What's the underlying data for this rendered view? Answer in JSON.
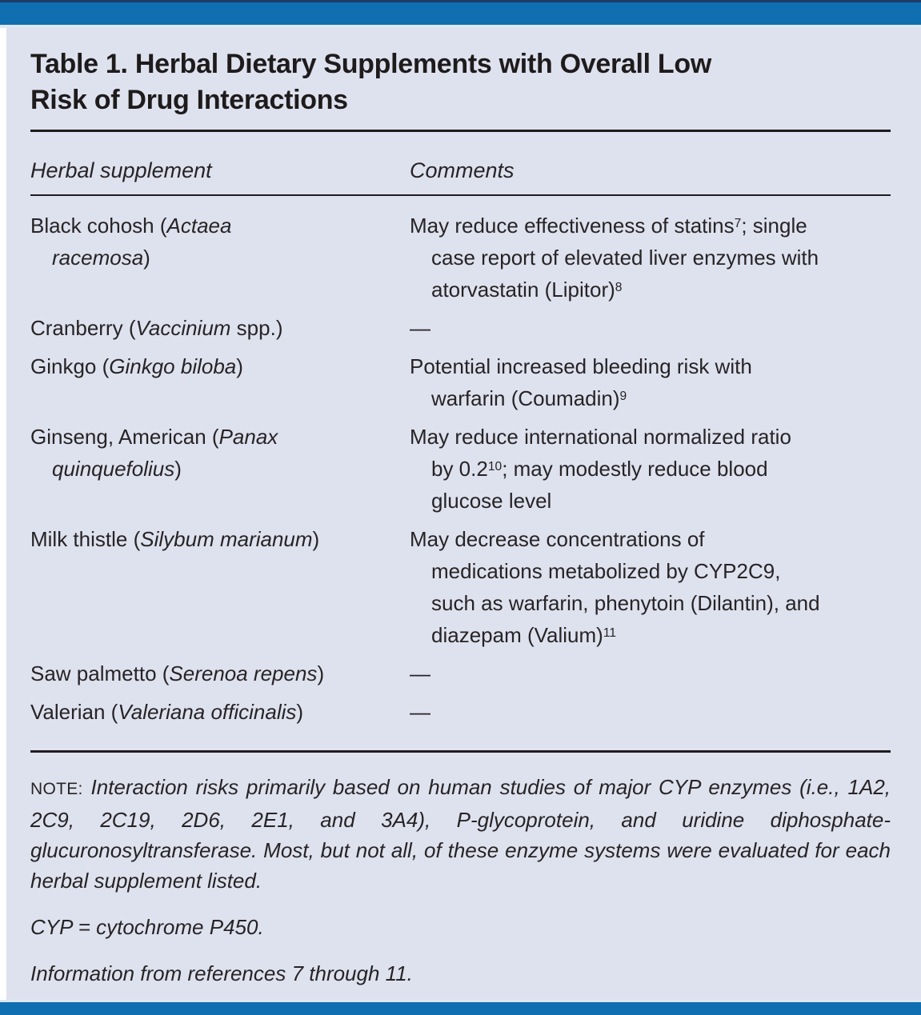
{
  "colors": {
    "bar_blue": "#0f6fb0",
    "bar_navy": "#1d3b66",
    "edge_light": "#dce8f5",
    "panel_bg": "#dee2ee",
    "ink": "#272326",
    "rule_ink": "#1e1c1e",
    "page_bg": "#ffffff"
  },
  "table": {
    "title_lines": [
      "Table 1. Herbal Dietary Supplements with Overall Low",
      "Risk of Drug Interactions"
    ],
    "columns": [
      "Herbal supplement",
      "Comments"
    ],
    "rows": [
      {
        "supplement": [
          {
            "text": "Black cohosh ("
          },
          {
            "text": "Actaea",
            "italic": true
          },
          {
            "br": true
          },
          {
            "text": "racemosa",
            "italic": true
          },
          {
            "text": ")"
          }
        ],
        "comment": [
          {
            "text": "May reduce effectiveness of statins"
          },
          {
            "text": "7",
            "sup": true
          },
          {
            "text": "; single"
          },
          {
            "br": true
          },
          {
            "text": "case report of elevated liver enzymes with"
          },
          {
            "br": true
          },
          {
            "text": "atorvastatin (Lipitor)"
          },
          {
            "text": "8",
            "sup": true
          }
        ]
      },
      {
        "supplement": [
          {
            "text": "Cranberry ("
          },
          {
            "text": "Vaccinium",
            "italic": true
          },
          {
            "text": " spp.)"
          }
        ],
        "comment": [
          {
            "text": "—"
          }
        ]
      },
      {
        "supplement": [
          {
            "text": "Ginkgo ("
          },
          {
            "text": "Ginkgo biloba",
            "italic": true
          },
          {
            "text": ")"
          }
        ],
        "comment": [
          {
            "text": "Potential increased bleeding risk with"
          },
          {
            "br": true
          },
          {
            "text": "warfarin (Coumadin)"
          },
          {
            "text": "9",
            "sup": true
          }
        ]
      },
      {
        "supplement": [
          {
            "text": "Ginseng, American ("
          },
          {
            "text": "Panax",
            "italic": true
          },
          {
            "br": true
          },
          {
            "text": "quinquefolius",
            "italic": true
          },
          {
            "text": ")"
          }
        ],
        "comment": [
          {
            "text": "May reduce international normalized ratio"
          },
          {
            "br": true
          },
          {
            "text": "by 0.2"
          },
          {
            "text": "10",
            "sup": true
          },
          {
            "text": "; may modestly reduce blood"
          },
          {
            "br": true
          },
          {
            "text": "glucose level"
          }
        ]
      },
      {
        "supplement": [
          {
            "text": "Milk thistle ("
          },
          {
            "text": "Silybum marianum",
            "italic": true
          },
          {
            "text": ")"
          }
        ],
        "comment": [
          {
            "text": "May decrease concentrations of"
          },
          {
            "br": true
          },
          {
            "text": "medications metabolized by CYP2C9,"
          },
          {
            "br": true
          },
          {
            "text": "such as warfarin, phenytoin (Dilantin), and"
          },
          {
            "br": true
          },
          {
            "text": "diazepam (Valium)"
          },
          {
            "text": "11",
            "sup": true
          }
        ]
      },
      {
        "supplement": [
          {
            "text": "Saw palmetto ("
          },
          {
            "text": "Serenoa repens",
            "italic": true
          },
          {
            "text": ")"
          }
        ],
        "comment": [
          {
            "text": "—"
          }
        ]
      },
      {
        "supplement": [
          {
            "text": "Valerian ("
          },
          {
            "text": "Valeriana officinalis",
            "italic": true
          },
          {
            "text": ")"
          }
        ],
        "comment": [
          {
            "text": "—"
          }
        ]
      }
    ],
    "note": [
      {
        "text": "NOTE:",
        "caps": true
      },
      {
        "text": " Interaction risks primarily based on human studies of major CYP enzymes (i.e., 1A2, 2C9, 2C19, 2D6, 2E1, and 3A4), P-glycoprotein, and uridine diphosphate-glucuronosyltransferase. Most, but not all, of these enzyme systems were evaluated for each herbal supplement listed.",
        "italic": true
      }
    ],
    "footnotes": [
      [
        {
          "text": "CYP = cytochrome P450.",
          "italic": true
        }
      ],
      [
        {
          "text": "Information from references 7 through 11.",
          "italic": true
        }
      ]
    ]
  }
}
